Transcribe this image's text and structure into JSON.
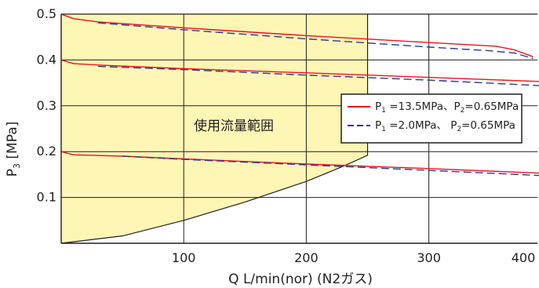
{
  "chart_data": {
    "type": "line",
    "xlabel": "Q L/min(nor) (N2ガス)",
    "ylabel": "P3 [MPa]",
    "ylabel_main": "P",
    "ylabel_sub": "3",
    "ylabel_unit": " [MPa]",
    "xlim": [
      0,
      395
    ],
    "ylim": [
      0,
      0.5
    ],
    "xticks": [
      100,
      200,
      300,
      400
    ],
    "xtick_labels": [
      "100",
      "200",
      "300",
      "400"
    ],
    "yticks": [
      0.1,
      0.2,
      0.3,
      0.4,
      0.5
    ],
    "ytick_labels": [
      "0.1",
      "0.2",
      "0.3",
      "0.4",
      "0.5"
    ],
    "grid": true,
    "legend_position": "right",
    "region": {
      "label": "使用流量範囲",
      "fill": "#fef6b5",
      "boundary": [
        [
          0,
          0
        ],
        [
          50,
          0.016
        ],
        [
          100,
          0.05
        ],
        [
          150,
          0.09
        ],
        [
          200,
          0.135
        ],
        [
          230,
          0.168
        ],
        [
          250,
          0.192
        ],
        [
          250,
          0.5
        ]
      ]
    },
    "legend": [
      {
        "style": "solid",
        "color": "#e8141e",
        "parts": [
          {
            "t": "P"
          },
          {
            "t": "1",
            "sub": true
          },
          {
            "t": " =13.5MPa、P"
          },
          {
            "t": "2",
            "sub": true
          },
          {
            "t": "=0.65MPa"
          }
        ]
      },
      {
        "style": "dashed",
        "color": "#2b3a8c",
        "parts": [
          {
            "t": "P"
          },
          {
            "t": "1",
            "sub": true
          },
          {
            "t": " =2.0MPa、 P"
          },
          {
            "t": "2",
            "sub": true
          },
          {
            "t": "=0.65MPa"
          }
        ]
      }
    ],
    "series": [
      {
        "style": "solid",
        "color": "#e8141e",
        "x": [
          0,
          10,
          30,
          100,
          200,
          300,
          355,
          370,
          385
        ],
        "y": [
          0.5,
          0.49,
          0.483,
          0.47,
          0.453,
          0.438,
          0.43,
          0.422,
          0.407
        ]
      },
      {
        "style": "dashed",
        "color": "#2b3a8c",
        "x": [
          30,
          100,
          200,
          300,
          350,
          370,
          385
        ],
        "y": [
          0.481,
          0.466,
          0.446,
          0.428,
          0.42,
          0.415,
          0.403
        ]
      },
      {
        "style": "solid",
        "color": "#e8141e",
        "x": [
          0,
          10,
          30,
          100,
          200,
          300,
          390
        ],
        "y": [
          0.4,
          0.392,
          0.389,
          0.381,
          0.372,
          0.362,
          0.353
        ]
      },
      {
        "style": "dashed",
        "color": "#2b3a8c",
        "x": [
          30,
          100,
          200,
          300,
          390
        ],
        "y": [
          0.386,
          0.379,
          0.367,
          0.356,
          0.344
        ]
      },
      {
        "style": "solid",
        "color": "#e8141e",
        "x": [
          0,
          10,
          50,
          100,
          200,
          300,
          390
        ],
        "y": [
          0.2,
          0.193,
          0.19,
          0.184,
          0.173,
          0.163,
          0.153
        ]
      },
      {
        "style": "dashed",
        "color": "#2b3a8c",
        "x": [
          50,
          100,
          200,
          300,
          390
        ],
        "y": [
          0.19,
          0.183,
          0.171,
          0.159,
          0.148
        ]
      }
    ]
  }
}
